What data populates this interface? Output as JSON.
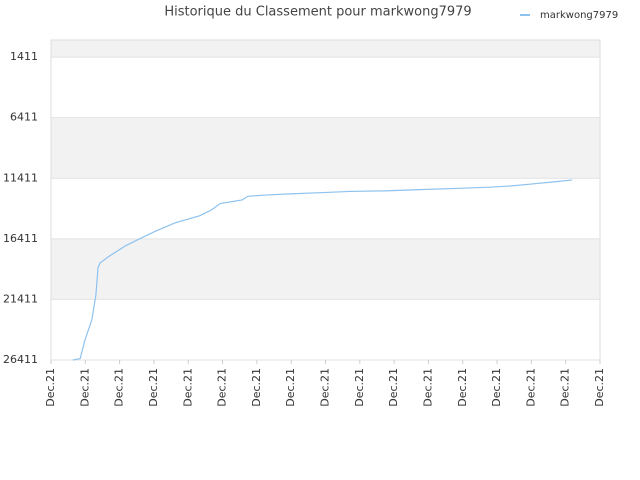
{
  "chart_data": {
    "type": "line",
    "title": "Historique du Classement pour markwong7979",
    "x": [
      0.64,
      0.85,
      0.99,
      1.19,
      1.31,
      1.37,
      1.43,
      1.72,
      2.16,
      2.59,
      3.03,
      3.61,
      4.34,
      4.69,
      4.93,
      5.57,
      5.74,
      6.24,
      6.97,
      7.84,
      8.71,
      9.73,
      10.75,
      11.77,
      12.79,
      13.38,
      13.96,
      14.69,
      15.19
    ],
    "series": [
      {
        "name": "markwong7979",
        "color": "#8dc2ee",
        "values": [
          26411,
          26300,
          24750,
          23100,
          21000,
          18800,
          18400,
          17800,
          17000,
          16400,
          15800,
          15100,
          14500,
          14000,
          13500,
          13200,
          12900,
          12800,
          12700,
          12600,
          12500,
          12450,
          12350,
          12250,
          12150,
          12050,
          11900,
          11700,
          11550
        ]
      }
    ],
    "xlim": [
      0,
      16
    ],
    "xticks": [
      {
        "value": 0,
        "label": "Dec.21"
      },
      {
        "value": 1,
        "label": "Dec.21"
      },
      {
        "value": 2,
        "label": "Dec.21"
      },
      {
        "value": 3,
        "label": "Dec.21"
      },
      {
        "value": 4,
        "label": "Dec.21"
      },
      {
        "value": 5,
        "label": "Dec.21"
      },
      {
        "value": 6,
        "label": "Dec.21"
      },
      {
        "value": 7,
        "label": "Dec.21"
      },
      {
        "value": 8,
        "label": "Dec.21"
      },
      {
        "value": 9,
        "label": "Dec.21"
      },
      {
        "value": 10,
        "label": "Dec.21"
      },
      {
        "value": 11,
        "label": "Dec.21"
      },
      {
        "value": 12,
        "label": "Dec.21"
      },
      {
        "value": 13,
        "label": "Dec.21"
      },
      {
        "value": 14,
        "label": "Dec.21"
      },
      {
        "value": 15,
        "label": "Dec.21"
      },
      {
        "value": 16,
        "label": "Dec.21"
      }
    ],
    "ylim": [
      26411,
      0
    ],
    "yticks": [
      1411,
      6411,
      11411,
      16411,
      21411,
      26411
    ],
    "grid": true,
    "legend": "top-right"
  }
}
